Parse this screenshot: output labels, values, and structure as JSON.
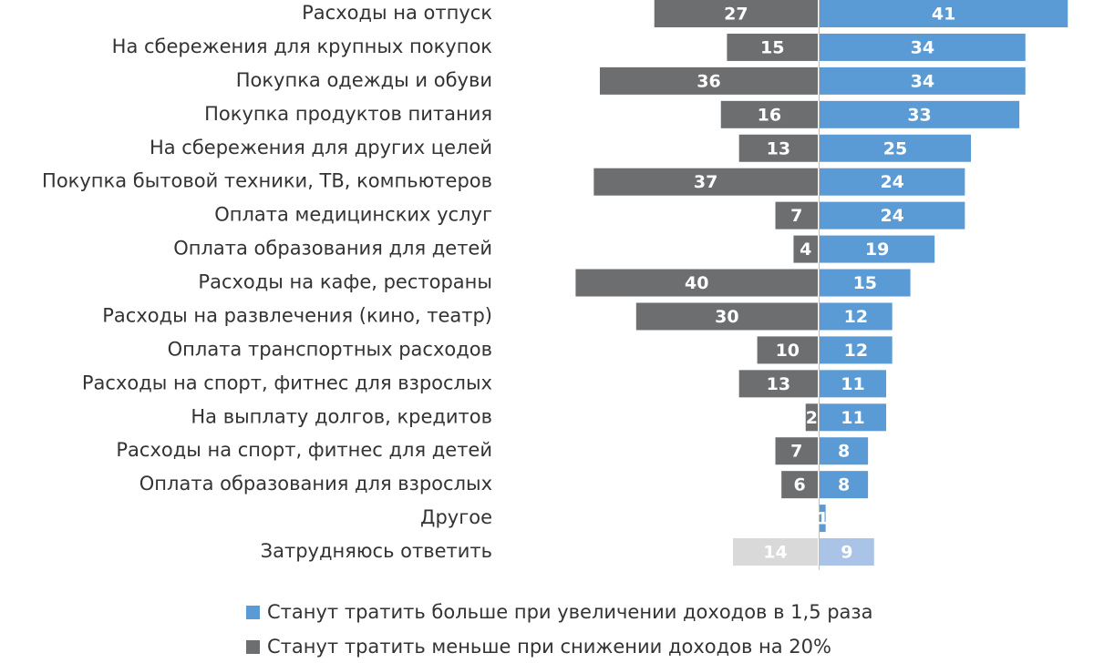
{
  "chart_data": {
    "type": "diverging-bar",
    "categories": [
      "Расходы на отпуск",
      "На сбережения для крупных покупок",
      "Покупка одежды и обуви",
      "Покупка продуктов питания",
      "На сбережения для других целей",
      "Покупка бытовой техники, ТВ, компьютеров",
      "Оплата медицинских услуг",
      "Оплата образования для детей",
      "Расходы на кафе, рестораны",
      "Расходы на развлечения (кино, театр)",
      "Оплата транспортных расходов",
      "Расходы на спорт, фитнес для взрослых",
      "На выплату долгов, кредитов",
      "Расходы на спорт, фитнес для детей",
      "Оплата образования для взрослых",
      "Другое",
      "Затрудняюсь ответить"
    ],
    "series": [
      {
        "name": "Станут тратить больше при увеличении доходов в 1,5 раза",
        "color": "#5b9bd5",
        "side": "right",
        "values": [
          41,
          34,
          34,
          33,
          25,
          24,
          24,
          19,
          15,
          12,
          12,
          11,
          11,
          8,
          8,
          1,
          9
        ],
        "colors": [
          "#5b9bd5",
          "#5b9bd5",
          "#5b9bd5",
          "#5b9bd5",
          "#5b9bd5",
          "#5b9bd5",
          "#5b9bd5",
          "#5b9bd5",
          "#5b9bd5",
          "#5b9bd5",
          "#5b9bd5",
          "#5b9bd5",
          "#5b9bd5",
          "#5b9bd5",
          "#5b9bd5",
          "#5b9bd5",
          "#aac4e8"
        ]
      },
      {
        "name": "Станут тратить меньше при снижении доходов на 20%",
        "color": "#6d6e70",
        "side": "left",
        "values": [
          27,
          15,
          36,
          16,
          13,
          37,
          7,
          4,
          40,
          30,
          10,
          13,
          2,
          7,
          6,
          null,
          14
        ],
        "colors": [
          "#6d6e70",
          "#6d6e70",
          "#6d6e70",
          "#6d6e70",
          "#6d6e70",
          "#6d6e70",
          "#6d6e70",
          "#6d6e70",
          "#6d6e70",
          "#6d6e70",
          "#6d6e70",
          "#6d6e70",
          "#6d6e70",
          "#6d6e70",
          "#6d6e70",
          "#6d6e70",
          "#d9d9d9"
        ]
      }
    ]
  }
}
